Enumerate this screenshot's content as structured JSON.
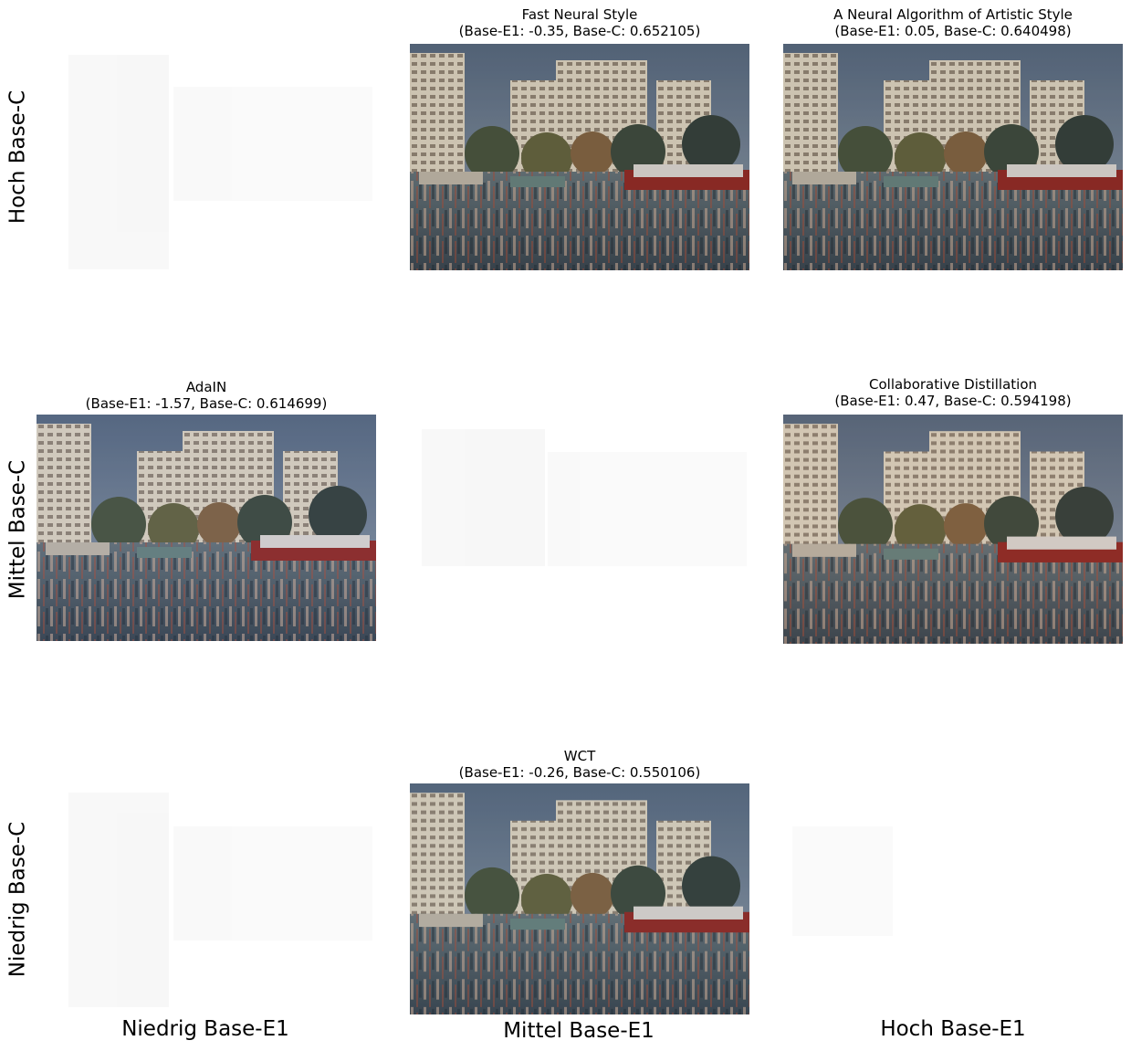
{
  "row_labels": [
    "Hoch Base-C",
    "Mittel Base-C",
    "Niedrig Base-C"
  ],
  "column_labels": [
    "Niedrig Base-E1",
    "Mittel Base-E1",
    "Hoch Base-E1"
  ],
  "panels": [
    {
      "title": "Fast Neural Style",
      "subtitle": "(Base-E1: -0.35, Base-C: 0.652105)"
    },
    {
      "title": "A Neural Algorithm of Artistic Style",
      "subtitle": "(Base-E1: 0.05, Base-C: 0.640498)"
    },
    {
      "title": "AdaIN",
      "subtitle": "(Base-E1: -1.57, Base-C: 0.614699)"
    },
    {
      "title": "Collaborative Distillation",
      "subtitle": "(Base-E1: 0.47, Base-C: 0.594198)"
    },
    {
      "title": "WCT",
      "subtitle": "(Base-E1: -0.26, Base-C: 0.550106)"
    }
  ]
}
